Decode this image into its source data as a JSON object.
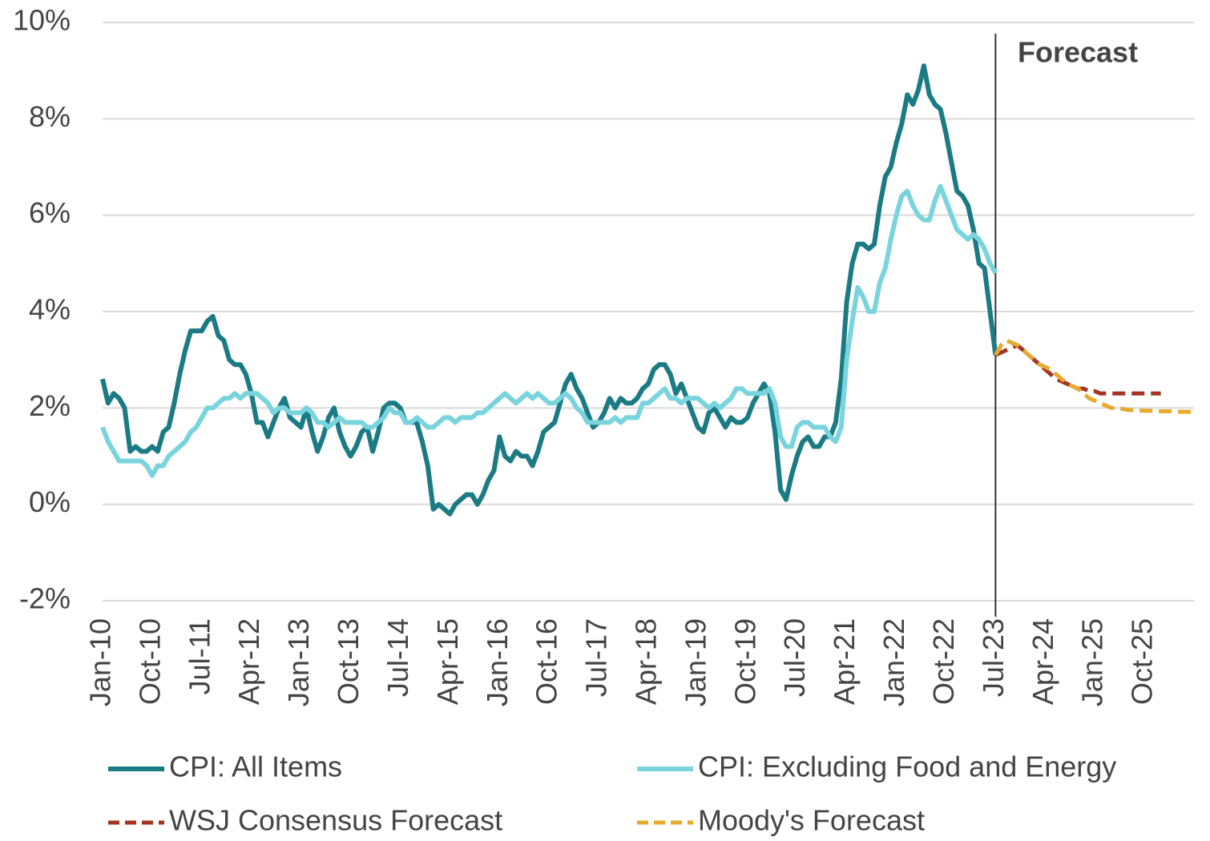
{
  "chart_data": {
    "type": "line",
    "annotation": {
      "text": "Forecast",
      "x": "Jul-23"
    },
    "categories": [
      "Jan-10",
      null,
      null,
      null,
      null,
      null,
      null,
      null,
      null,
      "Oct-10",
      null,
      null,
      null,
      null,
      null,
      null,
      null,
      null,
      "Jul-11",
      null,
      null,
      null,
      null,
      null,
      null,
      null,
      null,
      "Apr-12",
      null,
      null,
      null,
      null,
      null,
      null,
      null,
      null,
      "Jan-13",
      null,
      null,
      null,
      null,
      null,
      null,
      null,
      null,
      "Oct-13",
      null,
      null,
      null,
      null,
      null,
      null,
      null,
      null,
      "Jul-14",
      null,
      null,
      null,
      null,
      null,
      null,
      null,
      null,
      "Apr-15",
      null,
      null,
      null,
      null,
      null,
      null,
      null,
      null,
      "Jan-16",
      null,
      null,
      null,
      null,
      null,
      null,
      null,
      null,
      "Oct-16",
      null,
      null,
      null,
      null,
      null,
      null,
      null,
      null,
      "Jul-17",
      null,
      null,
      null,
      null,
      null,
      null,
      null,
      null,
      "Apr-18",
      null,
      null,
      null,
      null,
      null,
      null,
      null,
      null,
      "Jan-19",
      null,
      null,
      null,
      null,
      null,
      null,
      null,
      null,
      "Oct-19",
      null,
      null,
      null,
      null,
      null,
      null,
      null,
      null,
      "Jul-20",
      null,
      null,
      null,
      null,
      null,
      null,
      null,
      null,
      "Apr-21",
      null,
      null,
      null,
      null,
      null,
      null,
      null,
      null,
      "Jan-22",
      null,
      null,
      null,
      null,
      null,
      null,
      null,
      null,
      "Oct-22",
      null,
      null,
      null,
      null,
      null,
      null,
      null,
      null,
      "Jul-23",
      null,
      null,
      null,
      null,
      null,
      null,
      null,
      null,
      "Apr-24",
      null,
      null,
      null,
      null,
      null,
      null,
      null,
      null,
      "Jan-25",
      null,
      null,
      null,
      null,
      null,
      null,
      null,
      null,
      "Oct-25",
      null,
      null,
      null,
      null,
      null,
      null,
      null,
      null,
      null
    ],
    "series": [
      {
        "name": "CPI: All Items",
        "color": "#1b7b84",
        "dash": false,
        "values": [
          2.6,
          2.1,
          2.3,
          2.2,
          2.0,
          1.1,
          1.2,
          1.1,
          1.1,
          1.2,
          1.1,
          1.5,
          1.6,
          2.1,
          2.7,
          3.2,
          3.6,
          3.6,
          3.6,
          3.8,
          3.9,
          3.5,
          3.4,
          3.0,
          2.9,
          2.9,
          2.7,
          2.3,
          1.7,
          1.7,
          1.4,
          1.7,
          2.0,
          2.2,
          1.8,
          1.7,
          1.6,
          2.0,
          1.5,
          1.1,
          1.4,
          1.8,
          2.0,
          1.5,
          1.2,
          1.0,
          1.2,
          1.5,
          1.6,
          1.1,
          1.5,
          2.0,
          2.1,
          2.1,
          2.0,
          1.7,
          1.7,
          1.7,
          1.3,
          0.8,
          -0.1,
          0.0,
          -0.1,
          -0.2,
          0.0,
          0.1,
          0.2,
          0.2,
          0.0,
          0.2,
          0.5,
          0.7,
          1.4,
          1.0,
          0.9,
          1.1,
          1.0,
          1.0,
          0.8,
          1.1,
          1.5,
          1.6,
          1.7,
          2.1,
          2.5,
          2.7,
          2.4,
          2.2,
          1.9,
          1.6,
          1.7,
          1.9,
          2.2,
          2.0,
          2.2,
          2.1,
          2.1,
          2.2,
          2.4,
          2.5,
          2.8,
          2.9,
          2.9,
          2.7,
          2.3,
          2.5,
          2.2,
          1.9,
          1.6,
          1.5,
          1.9,
          2.0,
          1.8,
          1.6,
          1.8,
          1.7,
          1.7,
          1.8,
          2.1,
          2.3,
          2.5,
          2.3,
          1.5,
          0.3,
          0.1,
          0.6,
          1.0,
          1.3,
          1.4,
          1.2,
          1.2,
          1.4,
          1.4,
          1.7,
          2.6,
          4.2,
          5.0,
          5.4,
          5.4,
          5.3,
          5.4,
          6.2,
          6.8,
          7.0,
          7.5,
          7.9,
          8.5,
          8.3,
          8.6,
          9.1,
          8.5,
          8.3,
          8.2,
          7.7,
          7.1,
          6.5,
          6.4,
          6.2,
          5.7,
          5.0,
          4.9,
          4.0,
          3.1,
          null,
          null,
          null,
          null,
          null,
          null,
          null,
          null,
          null,
          null,
          null,
          null,
          null,
          null,
          null,
          null,
          null,
          null,
          null,
          null,
          null,
          null,
          null,
          null,
          null,
          null,
          null,
          null,
          null,
          null,
          null,
          null,
          null,
          null,
          null,
          null
        ]
      },
      {
        "name": "CPI: Excluding Food and Energy",
        "color": "#7ad4dd",
        "dash": false,
        "values": [
          1.6,
          1.3,
          1.1,
          0.9,
          0.9,
          0.9,
          0.9,
          0.9,
          0.8,
          0.6,
          0.8,
          0.8,
          1.0,
          1.1,
          1.2,
          1.3,
          1.5,
          1.6,
          1.8,
          2.0,
          2.0,
          2.1,
          2.2,
          2.2,
          2.3,
          2.2,
          2.3,
          2.3,
          2.3,
          2.2,
          2.1,
          1.9,
          2.0,
          2.0,
          1.9,
          1.9,
          1.9,
          2.0,
          1.9,
          1.7,
          1.7,
          1.6,
          1.7,
          1.8,
          1.7,
          1.7,
          1.7,
          1.7,
          1.6,
          1.6,
          1.7,
          1.8,
          2.0,
          1.9,
          1.9,
          1.7,
          1.7,
          1.8,
          1.7,
          1.6,
          1.6,
          1.7,
          1.8,
          1.8,
          1.7,
          1.8,
          1.8,
          1.8,
          1.9,
          1.9,
          2.0,
          2.1,
          2.2,
          2.3,
          2.2,
          2.1,
          2.2,
          2.3,
          2.2,
          2.3,
          2.2,
          2.1,
          2.1,
          2.2,
          2.3,
          2.2,
          2.0,
          1.9,
          1.7,
          1.7,
          1.7,
          1.7,
          1.7,
          1.8,
          1.7,
          1.8,
          1.8,
          1.8,
          2.1,
          2.1,
          2.2,
          2.3,
          2.4,
          2.2,
          2.2,
          2.1,
          2.2,
          2.2,
          2.2,
          2.1,
          2.0,
          2.1,
          2.0,
          2.1,
          2.2,
          2.4,
          2.4,
          2.3,
          2.3,
          2.3,
          2.3,
          2.4,
          2.1,
          1.4,
          1.2,
          1.2,
          1.6,
          1.7,
          1.7,
          1.6,
          1.6,
          1.6,
          1.4,
          1.3,
          1.6,
          3.0,
          3.8,
          4.5,
          4.3,
          4.0,
          4.0,
          4.6,
          4.9,
          5.5,
          6.0,
          6.4,
          6.5,
          6.2,
          6.0,
          5.9,
          5.9,
          6.3,
          6.6,
          6.3,
          6.0,
          5.7,
          5.6,
          5.5,
          5.6,
          5.5,
          5.3,
          5.0,
          4.8,
          null,
          null,
          null,
          null,
          null,
          null,
          null,
          null,
          null,
          null,
          null,
          null,
          null,
          null,
          null,
          null,
          null,
          null,
          null,
          null,
          null,
          null,
          null,
          null,
          null,
          null,
          null,
          null,
          null,
          null,
          null,
          null,
          null,
          null,
          null,
          null
        ]
      },
      {
        "name": "WSJ Consensus Forecast",
        "color": "#a33424",
        "dash": true,
        "values": [
          null,
          null,
          null,
          null,
          null,
          null,
          null,
          null,
          null,
          null,
          null,
          null,
          null,
          null,
          null,
          null,
          null,
          null,
          null,
          null,
          null,
          null,
          null,
          null,
          null,
          null,
          null,
          null,
          null,
          null,
          null,
          null,
          null,
          null,
          null,
          null,
          null,
          null,
          null,
          null,
          null,
          null,
          null,
          null,
          null,
          null,
          null,
          null,
          null,
          null,
          null,
          null,
          null,
          null,
          null,
          null,
          null,
          null,
          null,
          null,
          null,
          null,
          null,
          null,
          null,
          null,
          null,
          null,
          null,
          null,
          null,
          null,
          null,
          null,
          null,
          null,
          null,
          null,
          null,
          null,
          null,
          null,
          null,
          null,
          null,
          null,
          null,
          null,
          null,
          null,
          null,
          null,
          null,
          null,
          null,
          null,
          null,
          null,
          null,
          null,
          null,
          null,
          null,
          null,
          null,
          null,
          null,
          null,
          null,
          null,
          null,
          null,
          null,
          null,
          null,
          null,
          null,
          null,
          null,
          null,
          null,
          null,
          null,
          null,
          null,
          null,
          null,
          null,
          null,
          null,
          null,
          null,
          null,
          null,
          null,
          null,
          null,
          null,
          null,
          null,
          null,
          null,
          null,
          null,
          null,
          null,
          null,
          null,
          null,
          null,
          null,
          null,
          null,
          null,
          null,
          null,
          null,
          null,
          null,
          null,
          null,
          null,
          3.1,
          3.15,
          3.2,
          3.25,
          3.3,
          3.2,
          3.1,
          3.0,
          2.9,
          2.8,
          2.7,
          2.6,
          2.55,
          2.5,
          2.45,
          2.4,
          2.4,
          2.35,
          2.35,
          2.3,
          2.3,
          2.3,
          2.3,
          2.3,
          2.3,
          2.3,
          2.3,
          2.3,
          2.3,
          2.3,
          2.3,
          null,
          null,
          null,
          null,
          null,
          null
        ]
      },
      {
        "name": "Moody's Forecast",
        "color": "#e8a92c",
        "dash": true,
        "values": [
          null,
          null,
          null,
          null,
          null,
          null,
          null,
          null,
          null,
          null,
          null,
          null,
          null,
          null,
          null,
          null,
          null,
          null,
          null,
          null,
          null,
          null,
          null,
          null,
          null,
          null,
          null,
          null,
          null,
          null,
          null,
          null,
          null,
          null,
          null,
          null,
          null,
          null,
          null,
          null,
          null,
          null,
          null,
          null,
          null,
          null,
          null,
          null,
          null,
          null,
          null,
          null,
          null,
          null,
          null,
          null,
          null,
          null,
          null,
          null,
          null,
          null,
          null,
          null,
          null,
          null,
          null,
          null,
          null,
          null,
          null,
          null,
          null,
          null,
          null,
          null,
          null,
          null,
          null,
          null,
          null,
          null,
          null,
          null,
          null,
          null,
          null,
          null,
          null,
          null,
          null,
          null,
          null,
          null,
          null,
          null,
          null,
          null,
          null,
          null,
          null,
          null,
          null,
          null,
          null,
          null,
          null,
          null,
          null,
          null,
          null,
          null,
          null,
          null,
          null,
          null,
          null,
          null,
          null,
          null,
          null,
          null,
          null,
          null,
          null,
          null,
          null,
          null,
          null,
          null,
          null,
          null,
          null,
          null,
          null,
          null,
          null,
          null,
          null,
          null,
          null,
          null,
          null,
          null,
          null,
          null,
          null,
          null,
          null,
          null,
          null,
          null,
          null,
          null,
          null,
          null,
          null,
          null,
          null,
          null,
          null,
          null,
          3.1,
          3.3,
          3.4,
          3.35,
          3.3,
          3.2,
          3.1,
          3.0,
          2.9,
          2.85,
          2.8,
          2.7,
          2.6,
          2.5,
          2.45,
          2.4,
          2.3,
          2.2,
          2.15,
          2.1,
          2.05,
          2.0,
          2.0,
          1.98,
          1.96,
          1.95,
          1.95,
          1.94,
          1.94,
          1.93,
          1.93,
          1.93,
          1.93,
          1.92,
          1.92,
          1.92,
          1.92
        ]
      }
    ],
    "ylim": [
      -2,
      10
    ],
    "yticks": [
      {
        "value": -2,
        "label": "-2%"
      },
      {
        "value": 0,
        "label": "0%"
      },
      {
        "value": 2,
        "label": "2%"
      },
      {
        "value": 4,
        "label": "4%"
      },
      {
        "value": 6,
        "label": "6%"
      },
      {
        "value": 8,
        "label": "8%"
      },
      {
        "value": 10,
        "label": "10%"
      }
    ],
    "grid": true
  }
}
